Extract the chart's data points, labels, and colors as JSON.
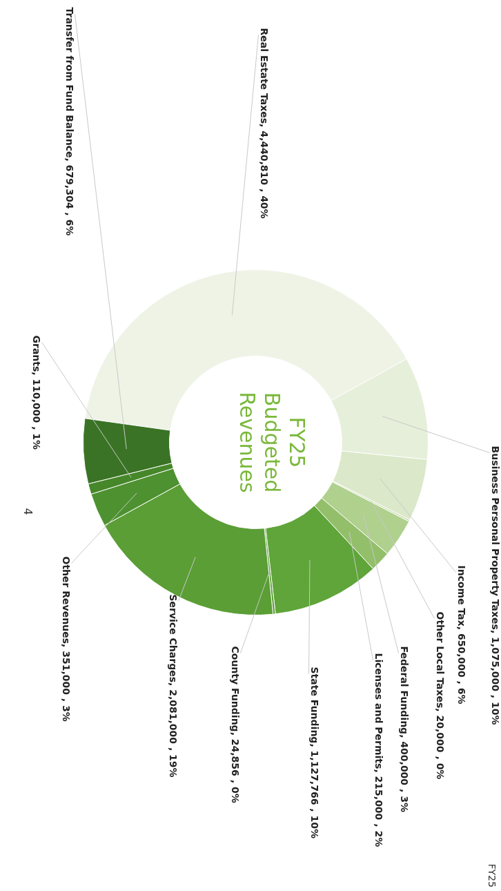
{
  "chart_data": {
    "type": "donut",
    "title": "FY25 Budgeted Revenues",
    "categories": [
      "Real Estate Taxes",
      "Business Personal Property Taxes",
      "Income Tax",
      "Other Local Taxes",
      "Federal Funding",
      "Licenses and Permits",
      "State Funding",
      "County Funding",
      "Service Charges",
      "Other Revenues",
      "Grants",
      "Transfer from Fund Balance"
    ],
    "values": [
      4440810,
      1075000,
      650000,
      20000,
      400000,
      215000,
      1127766,
      24856,
      2081000,
      351000,
      110000,
      679304
    ],
    "value_labels": [
      "4,440,810 , 40%",
      "1,075,000 , 10%",
      "650,000 , 6%",
      "20,000 , 0%",
      "400,000 , 3%",
      "215,000 , 2%",
      "1,127,766 , 10%",
      "24,856 , 0%",
      "2,081,000 , 19%",
      "351,000 , 3%",
      "110,000 , 1%",
      "679,304 , 6%"
    ],
    "colors": [
      "#eef3e6",
      "#e6efda",
      "#dbe8c9",
      "#cde0b5",
      "#b0d08e",
      "#93bf6a",
      "#5fa53a",
      "#5a9e35",
      "#5a9e35",
      "#4e9130",
      "#46872a",
      "#3a7325"
    ],
    "annotations": [
      "4",
      "FY25"
    ]
  }
}
